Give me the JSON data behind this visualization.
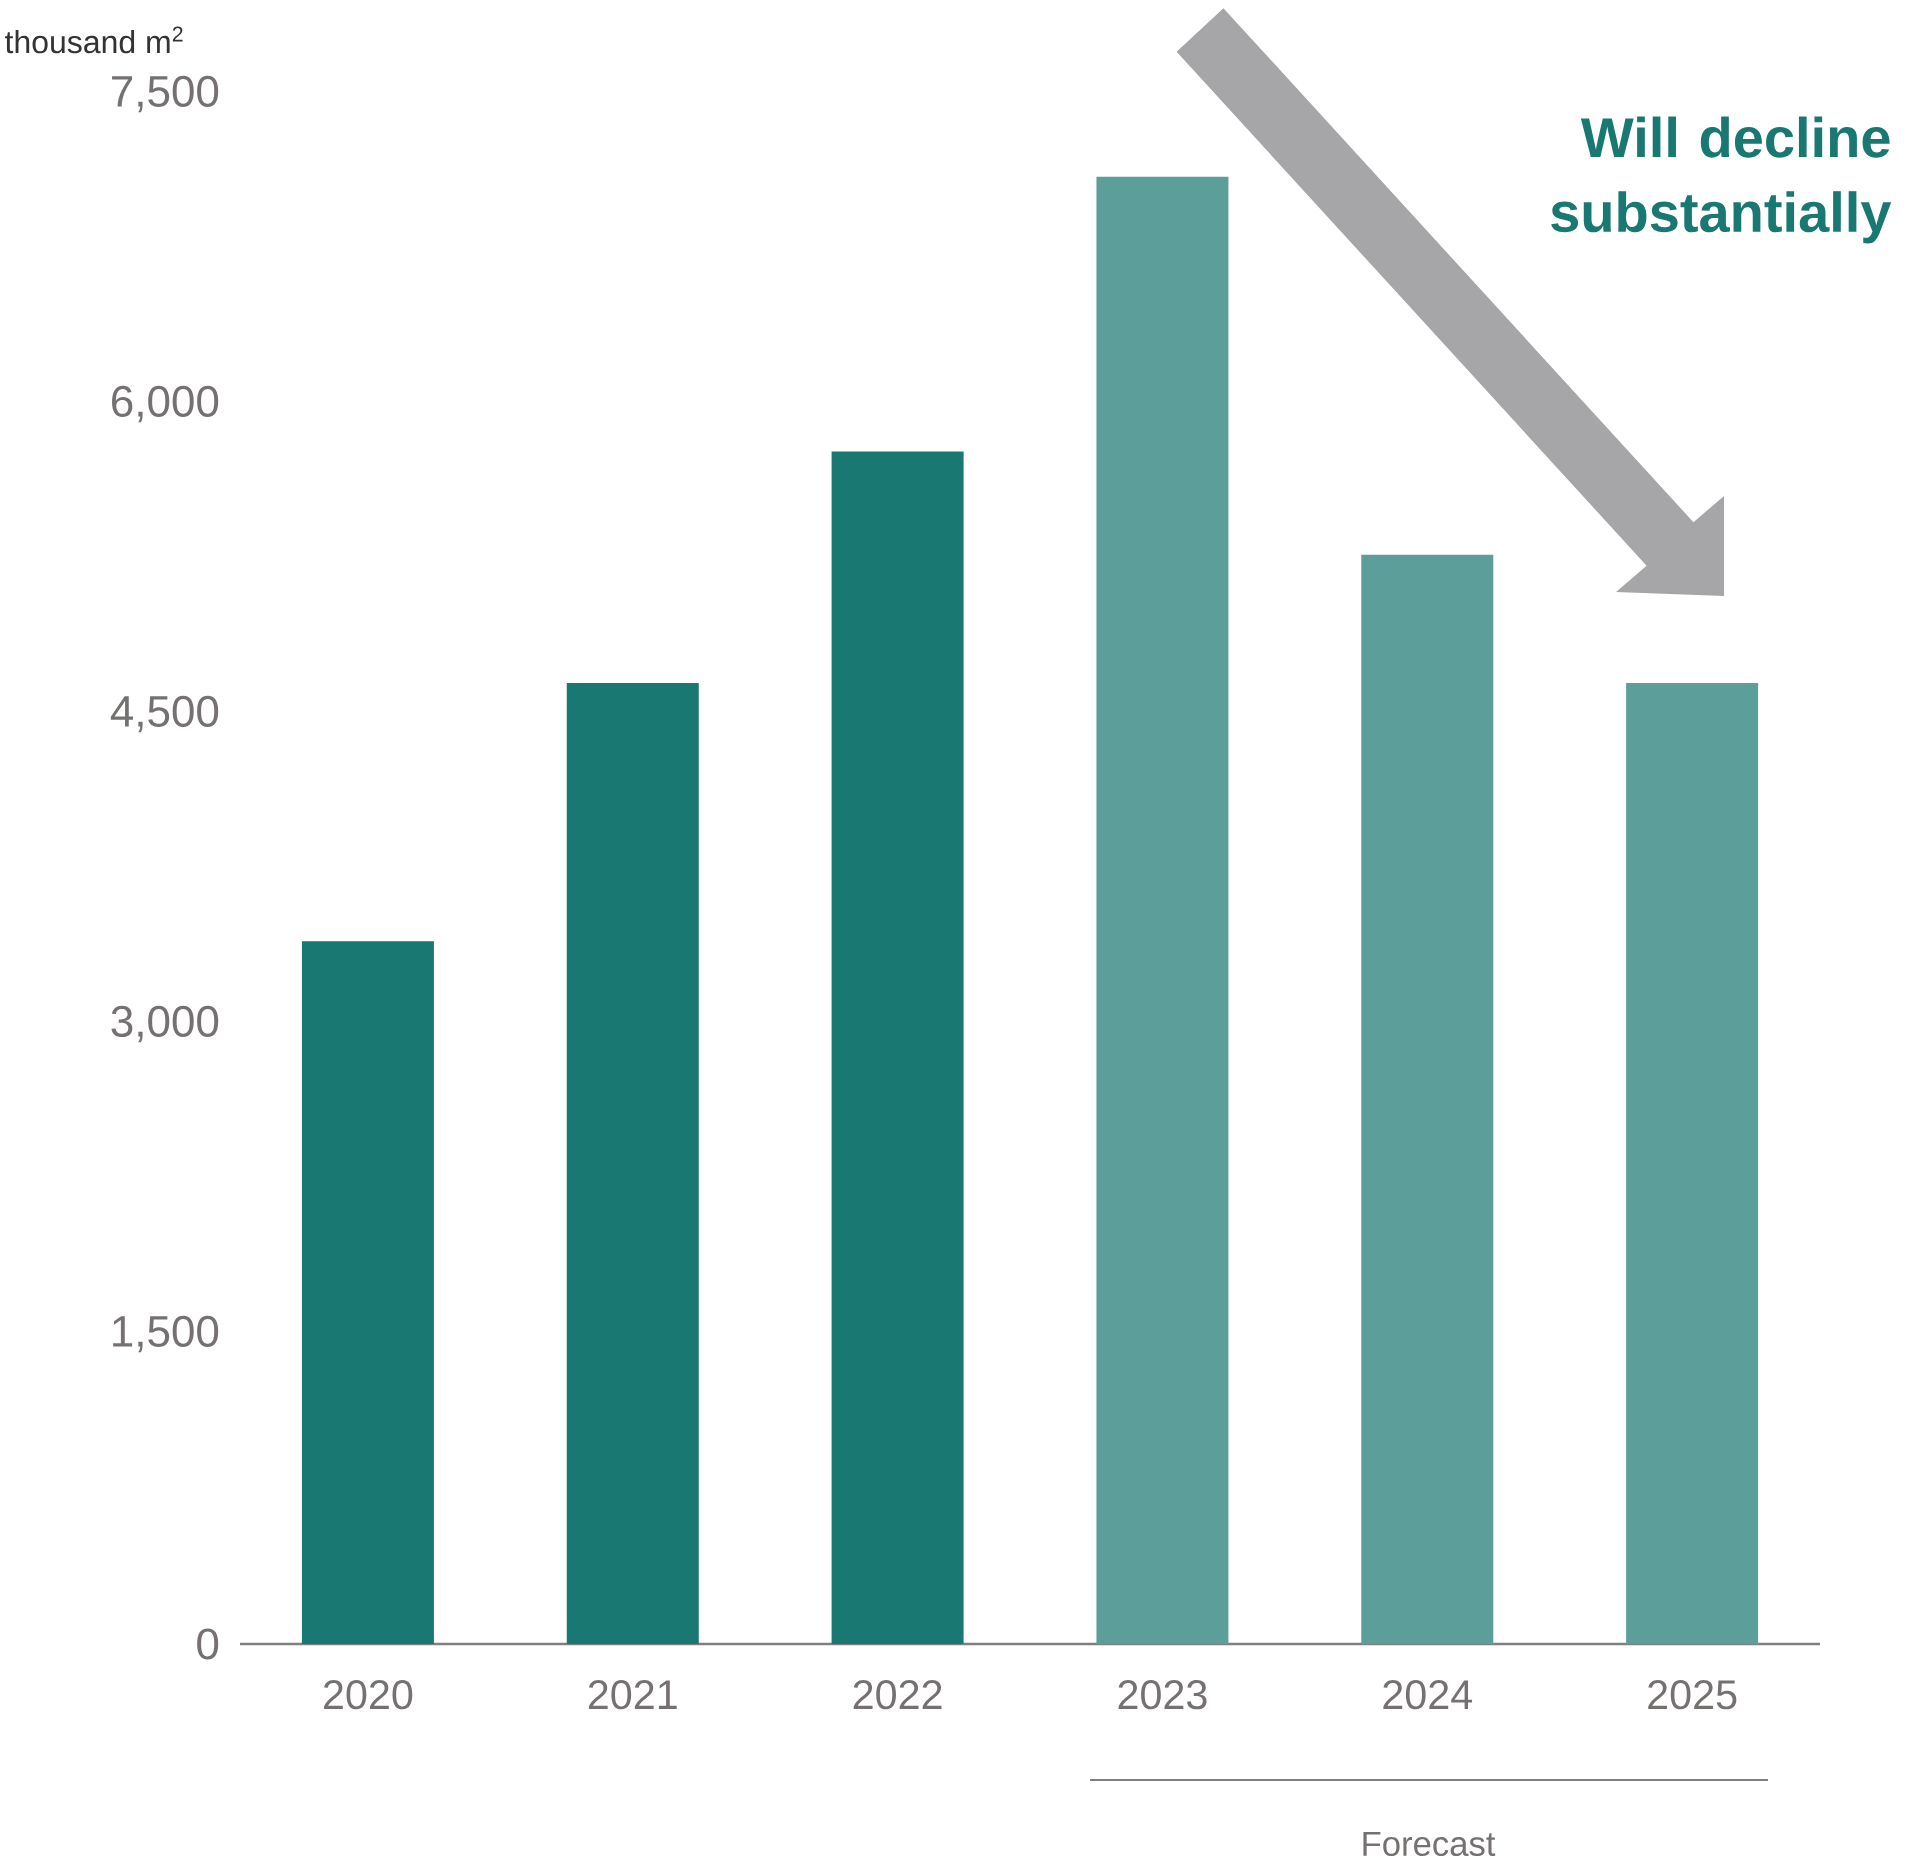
{
  "chart_data": {
    "type": "bar",
    "ylabel": "thousand m$^{2}$",
    "categories": [
      "2020",
      "2021",
      "2022",
      "2023",
      "2024",
      "2025"
    ],
    "values": [
      3400,
      4650,
      5770,
      7100,
      5270,
      4650
    ],
    "colors": [
      "#1a7872",
      "#1a7872",
      "#1a7872",
      "#5c9e99",
      "#5c9e99",
      "#5c9e99"
    ],
    "ylim": [
      0,
      7500
    ],
    "yticks": [
      {
        "value": 0,
        "label": "0"
      },
      {
        "value": 1500,
        "label": "1,500"
      },
      {
        "value": 3000,
        "label": "3,000"
      },
      {
        "value": 4500,
        "label": "4,500"
      },
      {
        "value": 6000,
        "label": "6,000"
      },
      {
        "value": 7500,
        "label": "7,500"
      }
    ],
    "annotations": [
      "Will decline substantially",
      "Forecast"
    ]
  }
}
